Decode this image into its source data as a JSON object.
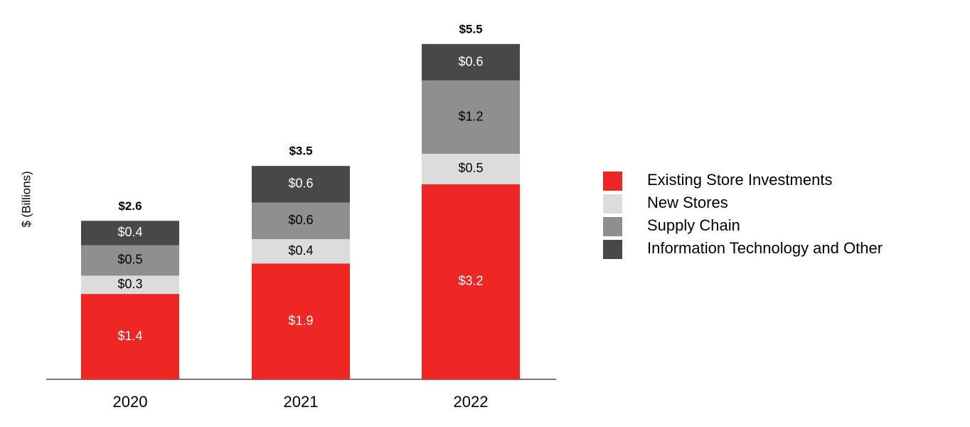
{
  "chart_data": {
    "type": "stacked-bar",
    "y_label": "$ (Billions)",
    "categories": [
      "2020",
      "2021",
      "2022"
    ],
    "series": [
      {
        "name": "Existing Store Investments",
        "color": "#ee2724",
        "values": [
          1.4,
          1.9,
          3.2
        ],
        "value_labels": [
          "$1.4",
          "$1.9",
          "$3.2"
        ]
      },
      {
        "name": "New Stores",
        "color": "#dcdcdc",
        "values": [
          0.3,
          0.4,
          0.5
        ],
        "value_labels": [
          "$0.3",
          "$0.4",
          "$0.5"
        ]
      },
      {
        "name": "Supply Chain",
        "color": "#8f8f8f",
        "values": [
          0.5,
          0.6,
          1.2
        ],
        "value_labels": [
          "$0.5",
          "$0.6",
          "$1.2"
        ]
      },
      {
        "name": "Information Technology and Other",
        "color": "#484848",
        "values": [
          0.4,
          0.6,
          0.6
        ],
        "value_labels": [
          "$0.4",
          "$0.6",
          "$0.6"
        ]
      }
    ],
    "totals": [
      2.6,
      3.5,
      5.5
    ],
    "total_labels": [
      "$2.6",
      "$3.5",
      "$5.5"
    ],
    "ylim": [
      0,
      6
    ],
    "legend": "right"
  }
}
